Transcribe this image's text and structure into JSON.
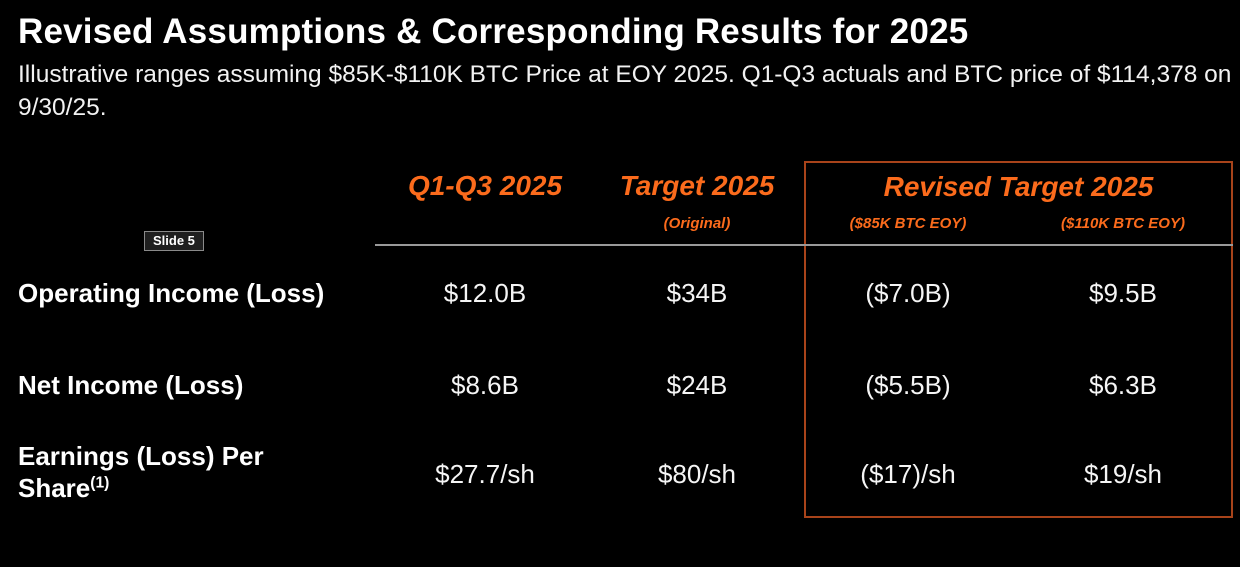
{
  "slide": {
    "title": "Revised Assumptions & Corresponding Results for 2025",
    "subtitle": "Illustrative ranges assuming $85K-$110K BTC Price at EOY 2025. Q1-Q3 actuals and BTC price of $114,378 on 9/30/25.",
    "badge_label": "Slide 5"
  },
  "colors": {
    "background": "#000000",
    "accent_orange": "#FB6B1C",
    "box_border": "#A8431A",
    "rule_gray": "#999999",
    "text_white": "#FFFFFF"
  },
  "table": {
    "headers": {
      "col1": "Q1-Q3 2025",
      "col2": "Target 2025",
      "col2_sub": "(Original)",
      "group": "Revised Target 2025",
      "col3_sub": "($85K BTC EOY)",
      "col4_sub": "($110K BTC EOY)"
    },
    "rows": [
      {
        "label": "Operating Income (Loss)",
        "q1_q3_2025": "$12.0B",
        "target_2025": "$34B",
        "revised_85k": "($7.0B)",
        "revised_110k": "$9.5B"
      },
      {
        "label": "Net Income (Loss)",
        "q1_q3_2025": "$8.6B",
        "target_2025": "$24B",
        "revised_85k": "($5.5B)",
        "revised_110k": "$6.3B"
      },
      {
        "label": "Earnings (Loss) Per Share",
        "label_superscript": "(1)",
        "q1_q3_2025": "$27.7/sh",
        "target_2025": "$80/sh",
        "revised_85k": "($17)/sh",
        "revised_110k": "$19/sh"
      }
    ]
  }
}
